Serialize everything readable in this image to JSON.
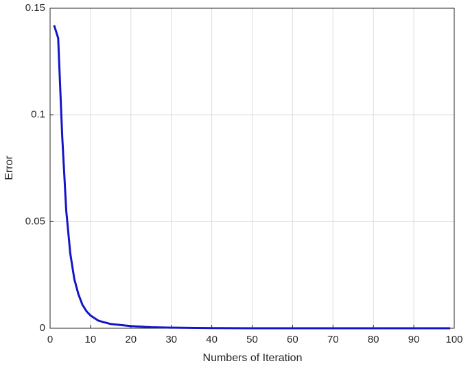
{
  "chart_data": {
    "type": "line",
    "xlabel": "Numbers of Iteration",
    "ylabel": "Error",
    "x": [
      1,
      2,
      3,
      4,
      5,
      6,
      7,
      8,
      9,
      10,
      12,
      15,
      20,
      25,
      30,
      40,
      50,
      60,
      70,
      80,
      90,
      99
    ],
    "series": [
      {
        "name": "Error",
        "color": "#1414c8",
        "values": [
          0.142,
          0.136,
          0.09,
          0.055,
          0.035,
          0.023,
          0.016,
          0.011,
          0.008,
          0.006,
          0.0035,
          0.002,
          0.001,
          0.0005,
          0.0003,
          0.0001,
          0,
          0,
          0,
          0,
          0,
          0
        ]
      }
    ],
    "xlim": [
      0,
      100
    ],
    "xticks": [
      0,
      10,
      20,
      30,
      40,
      50,
      60,
      70,
      80,
      90,
      100
    ],
    "ylim": [
      0,
      0.15
    ],
    "yticks": [
      0,
      0.05,
      0.1,
      0.15
    ],
    "grid": true
  }
}
